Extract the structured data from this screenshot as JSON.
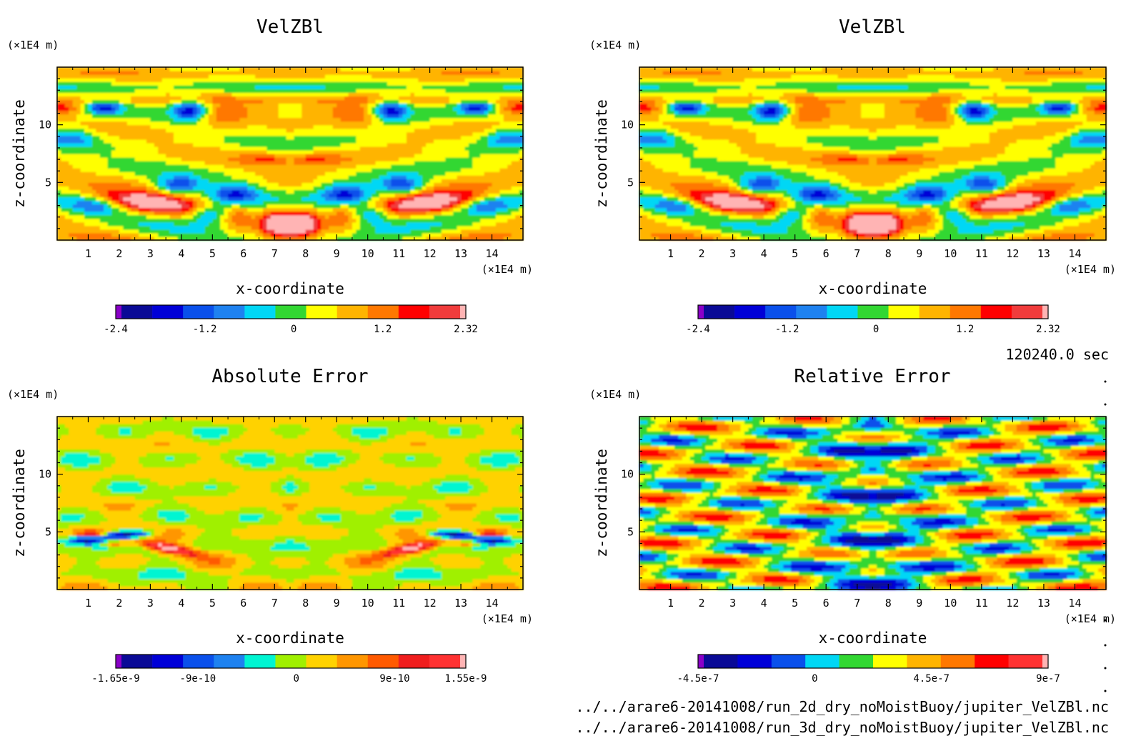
{
  "chart_data": [
    {
      "type": "contour",
      "title": "VelZBl",
      "xlabel": "x-coordinate",
      "ylabel": "z-coordinate",
      "x_unit": "(×1E4 m)",
      "y_unit": "(×1E4 m)",
      "xlim": [
        0,
        15
      ],
      "ylim": [
        0,
        15
      ],
      "x_ticks": [
        "1",
        "2",
        "3",
        "4",
        "5",
        "6",
        "7",
        "8",
        "9",
        "10",
        "11",
        "12",
        "13",
        "14"
      ],
      "y_ticks": [
        "5",
        "10"
      ],
      "colorbar": {
        "min": -2.4,
        "max": 2.32,
        "labels": [
          "-2.4",
          "-1.2",
          "0",
          "1.2",
          "2.32"
        ],
        "label_values": [
          -2.4,
          -1.2,
          0,
          1.2,
          2.32
        ],
        "colors": [
          "#8a00c8",
          "#0a0a96",
          "#0000d7",
          "#0a50eb",
          "#1e82f0",
          "#00d7f5",
          "#32d732",
          "#ffff00",
          "#ffb400",
          "#ff7800",
          "#ff0000",
          "#f03c3c",
          "#ffb4b4"
        ]
      }
    },
    {
      "type": "contour",
      "title": "VelZBl",
      "xlabel": "x-coordinate",
      "ylabel": "z-coordinate",
      "x_unit": "(×1E4 m)",
      "y_unit": "(×1E4 m)",
      "xlim": [
        0,
        15
      ],
      "ylim": [
        0,
        15
      ],
      "x_ticks": [
        "1",
        "2",
        "3",
        "4",
        "5",
        "6",
        "7",
        "8",
        "9",
        "10",
        "11",
        "12",
        "13",
        "14"
      ],
      "y_ticks": [
        "5",
        "10"
      ],
      "colorbar": {
        "min": -2.4,
        "max": 2.32,
        "labels": [
          "-2.4",
          "-1.2",
          "0",
          "1.2",
          "2.32"
        ],
        "label_values": [
          -2.4,
          -1.2,
          0,
          1.2,
          2.32
        ],
        "colors": [
          "#8a00c8",
          "#0a0a96",
          "#0000d7",
          "#0a50eb",
          "#1e82f0",
          "#00d7f5",
          "#32d732",
          "#ffff00",
          "#ffb400",
          "#ff7800",
          "#ff0000",
          "#f03c3c",
          "#ffb4b4"
        ]
      }
    },
    {
      "type": "contour",
      "title": "Absolute Error",
      "xlabel": "x-coordinate",
      "ylabel": "z-coordinate",
      "x_unit": "(×1E4 m)",
      "y_unit": "(×1E4 m)",
      "xlim": [
        0,
        15
      ],
      "ylim": [
        0,
        15
      ],
      "x_ticks": [
        "1",
        "2",
        "3",
        "4",
        "5",
        "6",
        "7",
        "8",
        "9",
        "10",
        "11",
        "12",
        "13",
        "14"
      ],
      "y_ticks": [
        "5",
        "10"
      ],
      "colorbar": {
        "min": -1.65e-09,
        "max": 1.55e-09,
        "labels": [
          "-1.65e-9",
          "-9e-10",
          "0",
          "9e-10",
          "1.55e-9"
        ],
        "label_values": [
          -1.65e-09,
          -9e-10,
          0,
          9e-10,
          1.55e-09
        ],
        "colors": [
          "#8a00c8",
          "#0a0a96",
          "#0000d7",
          "#0a50eb",
          "#1e82f0",
          "#00f5d2",
          "#a0f000",
          "#ffd200",
          "#ff9600",
          "#ff5a00",
          "#f01e1e",
          "#ff3232",
          "#ffb4b4"
        ]
      }
    },
    {
      "type": "contour",
      "title": "Relative Error",
      "xlabel": "x-coordinate",
      "ylabel": "z-coordinate",
      "x_unit": "(×1E4 m)",
      "y_unit": "(×1E4 m)",
      "xlim": [
        0,
        15
      ],
      "ylim": [
        0,
        15
      ],
      "x_ticks": [
        "1",
        "2",
        "3",
        "4",
        "5",
        "6",
        "7",
        "8",
        "9",
        "10",
        "11",
        "12",
        "13",
        "14"
      ],
      "y_ticks": [
        "5",
        "10"
      ],
      "colorbar": {
        "min": -4.5e-07,
        "max": 9e-07,
        "labels": [
          "-4.5e-7",
          "0",
          "4.5e-7",
          "9e-7"
        ],
        "label_values": [
          -4.5e-07,
          0,
          4.5e-07,
          9e-07
        ],
        "colors": [
          "#8a00c8",
          "#0a0a96",
          "#0000d7",
          "#0a50eb",
          "#00d7f5",
          "#32d732",
          "#ffff00",
          "#ffb400",
          "#ff7800",
          "#ff0000",
          "#ff3232",
          "#ffb4b4"
        ]
      }
    }
  ],
  "info": {
    "time": "120240.0 sec",
    "file1": "../../arare6-20141008/run_2d_dry_noMoistBuoy/jupiter_VelZBl.nc",
    "file2": "../../arare6-20141008/run_3d_dry_noMoistBuoy/jupiter_VelZBl.nc"
  }
}
